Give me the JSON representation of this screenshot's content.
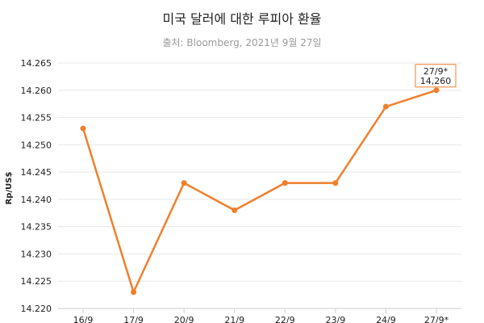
{
  "chart_data": {
    "type": "line",
    "title": "미국 달러에 대한 루피아 환율",
    "subtitle": "출처: Bloomberg, 2021년 9월 27일",
    "ylabel": "Rp/US$",
    "xlabel": "",
    "categories": [
      "16/9",
      "17/9",
      "20/9",
      "21/9",
      "22/9",
      "23/9",
      "24/9",
      "27/9*"
    ],
    "values": [
      14253,
      14223,
      14243,
      14238,
      14243,
      14243,
      14257,
      14260
    ],
    "ylim": [
      14220,
      14265
    ],
    "yticks": [
      "14.220",
      "14.225",
      "14.230",
      "14.235",
      "14.240",
      "14.245",
      "14.250",
      "14.255",
      "14.260",
      "14.265"
    ],
    "yticks_values": [
      14220,
      14225,
      14230,
      14235,
      14240,
      14245,
      14250,
      14255,
      14260,
      14265
    ],
    "grid": true,
    "color": "#f07f2c",
    "tooltip": {
      "category": "27/9*",
      "value_label": "14,260"
    }
  }
}
